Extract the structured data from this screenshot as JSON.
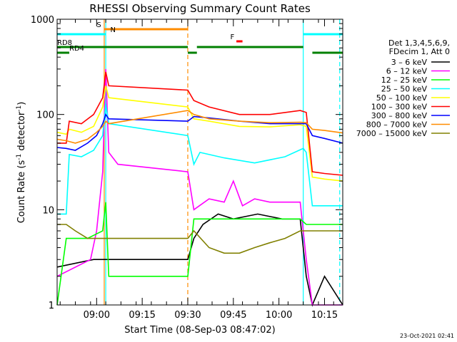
{
  "chart_data": {
    "type": "line",
    "title": "RHESSI Observing Summary Count Rates",
    "xlabel": "Start Time (08-Sep-03 08:47:02)",
    "ylabel_main": "Count Rate (s",
    "ylabel_sup": "-1",
    "ylabel_mid": " detector",
    "ylabel_end": ")",
    "yscale": "log",
    "ylim": [
      1,
      1000
    ],
    "xlim_minutes": [
      0,
      94
    ],
    "y_ticks": [
      {
        "value": 1,
        "label": "1"
      },
      {
        "value": 10,
        "label": "10"
      },
      {
        "value": 100,
        "label": "100"
      },
      {
        "value": 1000,
        "label": "1000"
      }
    ],
    "x_ticks": [
      {
        "minute": 13,
        "label": "09:00"
      },
      {
        "minute": 28,
        "label": "09:15"
      },
      {
        "minute": 43,
        "label": "09:30"
      },
      {
        "minute": 58,
        "label": "09:45"
      },
      {
        "minute": 73,
        "label": "10:00"
      },
      {
        "minute": 88,
        "label": "10:15"
      }
    ],
    "legend_header": [
      "Det 1,3,4,5,6,9,",
      "FDecim 1, Att 0"
    ],
    "timestamp": "23-Oct-2021 02:41",
    "series": [
      {
        "name": "3 - 6 keV",
        "label": "3 – 6 keV",
        "color": "#000000",
        "points": [
          [
            0,
            2.5
          ],
          [
            12,
            3
          ],
          [
            16,
            3
          ],
          [
            43,
            3
          ],
          [
            45,
            5
          ],
          [
            48,
            7
          ],
          [
            53,
            9
          ],
          [
            58,
            8
          ],
          [
            66,
            9
          ],
          [
            74,
            8
          ],
          [
            80,
            8
          ],
          [
            82,
            2
          ],
          [
            84,
            1
          ],
          [
            88,
            2
          ],
          [
            94,
            1
          ]
        ]
      },
      {
        "name": "6 - 12 keV",
        "label": "6 – 12 keV",
        "color": "#ff00ff",
        "points": [
          [
            0,
            2
          ],
          [
            11,
            3
          ],
          [
            13,
            6
          ],
          [
            15,
            25
          ],
          [
            16,
            300
          ],
          [
            17,
            40
          ],
          [
            20,
            30
          ],
          [
            43,
            25
          ],
          [
            45,
            10
          ],
          [
            50,
            13
          ],
          [
            55,
            12
          ],
          [
            58,
            20
          ],
          [
            61,
            11
          ],
          [
            65,
            13
          ],
          [
            70,
            12
          ],
          [
            75,
            12
          ],
          [
            80,
            12
          ],
          [
            82,
            3
          ],
          [
            84,
            1
          ],
          [
            88,
            1
          ],
          [
            94,
            1
          ]
        ]
      },
      {
        "name": "12 - 25 keV",
        "label": "12 – 25 keV",
        "color": "#00ff00",
        "points": [
          [
            0,
            1
          ],
          [
            3,
            5
          ],
          [
            10,
            5
          ],
          [
            15,
            6
          ],
          [
            16,
            12
          ],
          [
            17,
            2
          ],
          [
            43,
            2
          ],
          [
            45,
            8
          ],
          [
            50,
            8
          ],
          [
            60,
            8
          ],
          [
            70,
            8
          ],
          [
            80,
            8
          ],
          [
            82,
            7
          ],
          [
            88,
            7
          ],
          [
            94,
            7
          ]
        ]
      },
      {
        "name": "25 - 50 keV",
        "label": "25 – 50 keV",
        "color": "#00ffff",
        "points": [
          [
            0,
            9
          ],
          [
            3,
            9
          ],
          [
            4,
            38
          ],
          [
            8,
            36
          ],
          [
            12,
            42
          ],
          [
            15,
            60
          ],
          [
            16,
            130
          ],
          [
            17,
            80
          ],
          [
            43,
            60
          ],
          [
            45,
            30
          ],
          [
            47,
            40
          ],
          [
            55,
            35
          ],
          [
            65,
            31
          ],
          [
            75,
            36
          ],
          [
            81,
            44
          ],
          [
            82,
            40
          ],
          [
            84,
            11
          ],
          [
            88,
            11
          ],
          [
            94,
            11
          ]
        ]
      },
      {
        "name": "50 - 100 keV",
        "label": "50 – 100 keV",
        "color": "#ffff00",
        "points": [
          [
            0,
            65
          ],
          [
            3,
            62
          ],
          [
            4,
            70
          ],
          [
            8,
            65
          ],
          [
            12,
            75
          ],
          [
            15,
            120
          ],
          [
            16,
            200
          ],
          [
            17,
            150
          ],
          [
            43,
            120
          ],
          [
            45,
            90
          ],
          [
            50,
            85
          ],
          [
            60,
            75
          ],
          [
            70,
            74
          ],
          [
            80,
            78
          ],
          [
            82,
            75
          ],
          [
            84,
            22
          ],
          [
            88,
            21
          ],
          [
            94,
            20
          ]
        ]
      },
      {
        "name": "100 - 300 keV",
        "label": "100 – 300 keV",
        "color": "#ff0000",
        "points": [
          [
            0,
            50
          ],
          [
            3,
            50
          ],
          [
            4,
            85
          ],
          [
            8,
            80
          ],
          [
            12,
            100
          ],
          [
            15,
            150
          ],
          [
            16,
            280
          ],
          [
            17,
            200
          ],
          [
            43,
            180
          ],
          [
            45,
            140
          ],
          [
            50,
            120
          ],
          [
            60,
            100
          ],
          [
            70,
            100
          ],
          [
            80,
            110
          ],
          [
            82,
            105
          ],
          [
            84,
            25
          ],
          [
            88,
            24
          ],
          [
            94,
            23
          ]
        ]
      },
      {
        "name": "300 - 800 keV",
        "label": "300 – 800 keV",
        "color": "#0000ff",
        "points": [
          [
            0,
            45
          ],
          [
            3,
            44
          ],
          [
            6,
            42
          ],
          [
            10,
            50
          ],
          [
            13,
            60
          ],
          [
            15,
            80
          ],
          [
            16,
            100
          ],
          [
            17,
            90
          ],
          [
            43,
            85
          ],
          [
            45,
            95
          ],
          [
            50,
            92
          ],
          [
            60,
            85
          ],
          [
            70,
            80
          ],
          [
            80,
            80
          ],
          [
            82,
            80
          ],
          [
            84,
            60
          ],
          [
            88,
            56
          ],
          [
            94,
            50
          ]
        ]
      },
      {
        "name": "800 - 7000 keV",
        "label": "800 – 7000 keV",
        "color": "#ff8c00",
        "points": [
          [
            0,
            55
          ],
          [
            3,
            53
          ],
          [
            6,
            50
          ],
          [
            10,
            55
          ],
          [
            13,
            65
          ],
          [
            15,
            75
          ],
          [
            16,
            85
          ],
          [
            17,
            80
          ],
          [
            43,
            110
          ],
          [
            45,
            100
          ],
          [
            50,
            90
          ],
          [
            60,
            85
          ],
          [
            70,
            82
          ],
          [
            80,
            83
          ],
          [
            82,
            82
          ],
          [
            84,
            70
          ],
          [
            88,
            68
          ],
          [
            94,
            64
          ]
        ]
      },
      {
        "name": "7000 - 15000 keV",
        "label": "7000 – 15000 keV",
        "color": "#808000",
        "points": [
          [
            0,
            7
          ],
          [
            3,
            7
          ],
          [
            6,
            6
          ],
          [
            10,
            5
          ],
          [
            13,
            5
          ],
          [
            15,
            5
          ],
          [
            16,
            5
          ],
          [
            17,
            5
          ],
          [
            43,
            5
          ],
          [
            45,
            6
          ],
          [
            50,
            4
          ],
          [
            55,
            3.5
          ],
          [
            60,
            3.5
          ],
          [
            65,
            4
          ],
          [
            70,
            4.5
          ],
          [
            75,
            5
          ],
          [
            80,
            6
          ],
          [
            84,
            6
          ],
          [
            88,
            6
          ],
          [
            94,
            6
          ]
        ]
      }
    ],
    "vertical_lines": [
      {
        "minute": 15.5,
        "color": "#ff8c00",
        "dashed": false
      },
      {
        "minute": 16,
        "color": "#00ffff",
        "dashed": false
      },
      {
        "minute": 43,
        "color": "#ff8c00",
        "dashed": true
      },
      {
        "minute": 81,
        "color": "#00ffff",
        "dashed": false
      },
      {
        "minute": 93,
        "color": "#00ffff",
        "dashed": true
      }
    ],
    "flag_bars": [
      {
        "label": "S",
        "color": "#ff8c00",
        "level": "top",
        "segments": [
          [
            15.5,
            43
          ]
        ],
        "label_minute": 13
      },
      {
        "label": "N",
        "color": "#00ffff",
        "level": "top2",
        "segments": [
          [
            0,
            16
          ],
          [
            81,
            94
          ]
        ],
        "label_minute": 17.5
      },
      {
        "label": "F",
        "color": "#ff0000",
        "level": "flare",
        "segments": [
          [
            59,
            61
          ]
        ],
        "label_minute": 57
      },
      {
        "label": "RD8",
        "color": "#008000",
        "level": "rd8",
        "segments": [
          [
            0,
            43
          ],
          [
            46,
            81
          ]
        ],
        "label_minute": 0
      },
      {
        "label": "RD4",
        "color": "#008000",
        "level": "rd4",
        "segments": [
          [
            0,
            4
          ],
          [
            43,
            46
          ],
          [
            84,
            94
          ]
        ],
        "label_minute": 4
      }
    ]
  }
}
